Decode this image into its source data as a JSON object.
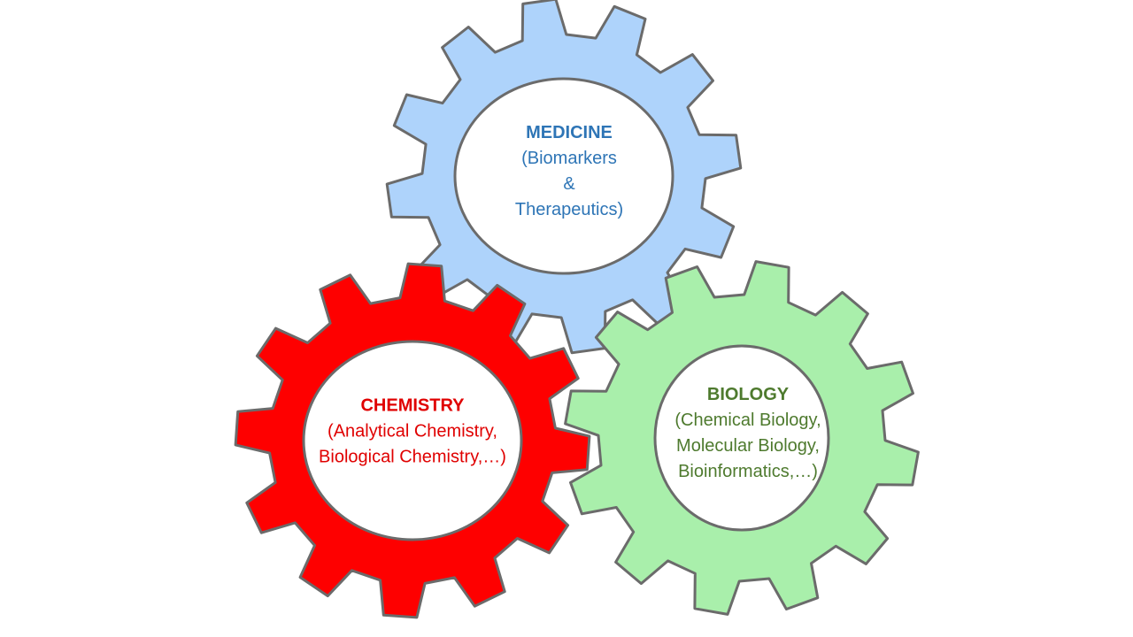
{
  "gears": [
    {
      "id": "medicine",
      "title": "MEDICINE",
      "lines": [
        "(Biomarkers",
        "&",
        "Therapeutics)"
      ],
      "fill": "#aed3fb",
      "text_color": "#2e75b6"
    },
    {
      "id": "chemistry",
      "title": "CHEMISTRY",
      "lines": [
        "(Analytical Chemistry,",
        "Biological Chemistry,…)"
      ],
      "fill": "#fe0000",
      "text_color": "#e00000"
    },
    {
      "id": "biology",
      "title": "BIOLOGY",
      "lines": [
        "(Chemical Biology,",
        "Molecular Biology,",
        "Bioinformatics,…)"
      ],
      "fill": "#a9efab",
      "text_color": "#4e7a2e"
    }
  ],
  "colors": {
    "outline": "#6b6b6b",
    "hub": "#ffffff",
    "background": "#ffffff"
  }
}
